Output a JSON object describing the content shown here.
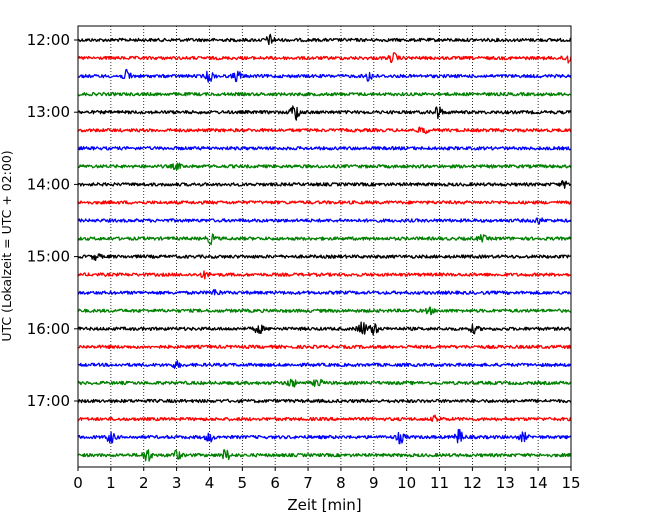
{
  "chart_data": {
    "type": "line",
    "xlabel": "Zeit  [min]",
    "ylabel": "UTC (Lokalzeit = UTC + 02:00)",
    "xlim": [
      0,
      15
    ],
    "x_ticks": [
      0,
      1,
      2,
      3,
      4,
      5,
      6,
      7,
      8,
      9,
      10,
      11,
      12,
      13,
      14,
      15
    ],
    "y_tick_labels": [
      "12:00",
      "13:00",
      "14:00",
      "15:00",
      "16:00",
      "17:00"
    ],
    "y_tick_rows": [
      0,
      4,
      8,
      12,
      16,
      20
    ],
    "grid": "vertical dotted",
    "trace_colors": [
      "#000000",
      "#ff0000",
      "#0000ff",
      "#008000"
    ],
    "traces": [
      {
        "start": "12:00",
        "events": [
          [
            5.85,
            0.5
          ]
        ]
      },
      {
        "start": "12:15",
        "events": [
          [
            9.6,
            0.5
          ],
          [
            14.9,
            0.5
          ]
        ]
      },
      {
        "start": "12:30",
        "events": [
          [
            1.5,
            0.6
          ],
          [
            4.0,
            0.55
          ],
          [
            4.85,
            0.55
          ],
          [
            8.85,
            0.5
          ]
        ]
      },
      {
        "start": "12:45",
        "events": []
      },
      {
        "start": "13:00",
        "events": [
          [
            6.6,
            1.0
          ],
          [
            10.95,
            0.65
          ]
        ]
      },
      {
        "start": "13:15",
        "events": [
          [
            10.5,
            0.4
          ]
        ]
      },
      {
        "start": "13:30",
        "events": []
      },
      {
        "start": "13:45",
        "events": [
          [
            3.0,
            0.3
          ]
        ]
      },
      {
        "start": "14:00",
        "events": [
          [
            14.8,
            0.3
          ]
        ]
      },
      {
        "start": "14:15",
        "events": []
      },
      {
        "start": "14:30",
        "events": [
          [
            14.0,
            0.3
          ]
        ]
      },
      {
        "start": "14:45",
        "events": [
          [
            4.05,
            0.5
          ],
          [
            12.3,
            0.3
          ]
        ]
      },
      {
        "start": "15:00",
        "events": [
          [
            0.55,
            0.3
          ]
        ]
      },
      {
        "start": "15:15",
        "events": [
          [
            3.85,
            0.3
          ]
        ]
      },
      {
        "start": "15:30",
        "events": [
          [
            4.2,
            0.3
          ]
        ]
      },
      {
        "start": "15:45",
        "events": [
          [
            10.7,
            0.3
          ]
        ]
      },
      {
        "start": "16:00",
        "events": [
          [
            5.5,
            0.5
          ],
          [
            8.65,
            0.8
          ],
          [
            9.0,
            0.6
          ],
          [
            12.05,
            0.4
          ]
        ]
      },
      {
        "start": "16:15",
        "events": []
      },
      {
        "start": "16:30",
        "events": [
          [
            3.0,
            0.3
          ]
        ]
      },
      {
        "start": "16:45",
        "events": [
          [
            6.5,
            0.45
          ],
          [
            7.3,
            0.45
          ]
        ]
      },
      {
        "start": "17:00",
        "events": []
      },
      {
        "start": "17:15",
        "events": [
          [
            10.9,
            0.3
          ]
        ]
      },
      {
        "start": "17:30",
        "events": [
          [
            1.0,
            0.6
          ],
          [
            4.0,
            0.45
          ],
          [
            9.8,
            0.6
          ],
          [
            11.6,
            0.75
          ],
          [
            13.55,
            0.45
          ]
        ]
      },
      {
        "start": "17:45",
        "events": [
          [
            2.1,
            0.75
          ],
          [
            3.0,
            0.5
          ],
          [
            4.5,
            0.6
          ]
        ]
      }
    ]
  }
}
